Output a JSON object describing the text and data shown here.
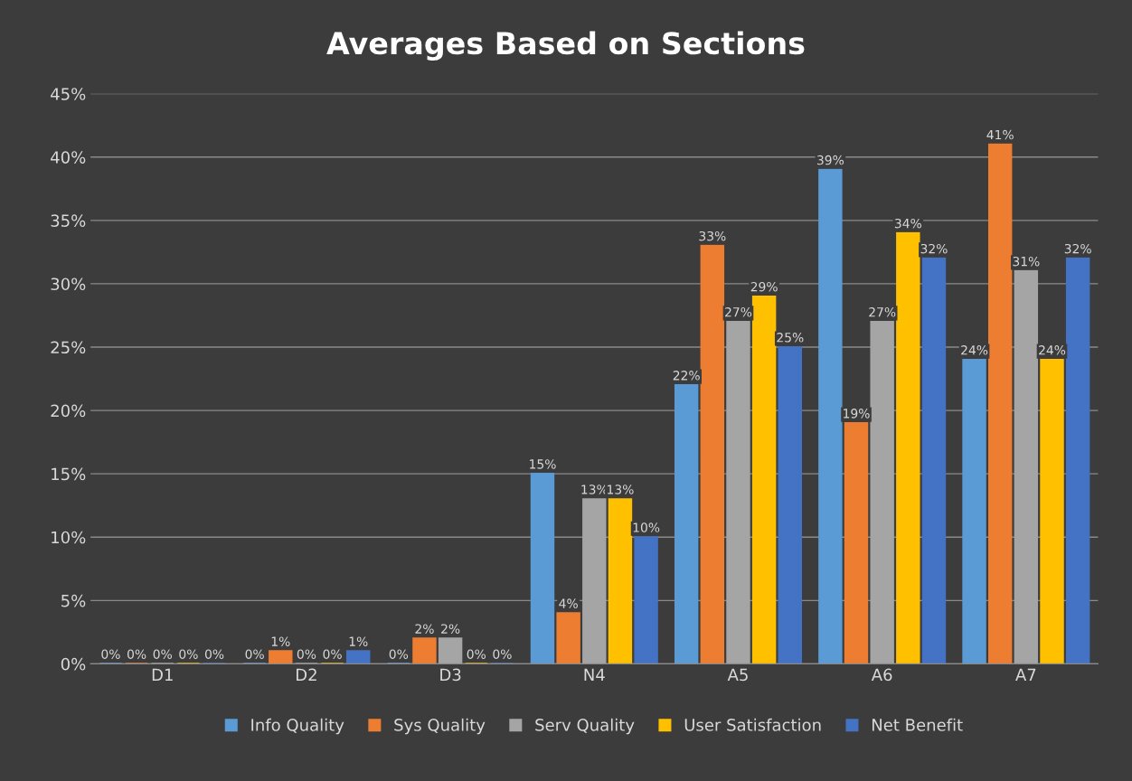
{
  "chart_data": {
    "type": "bar",
    "title": "Averages Based on Sections",
    "categories": [
      "D1",
      "D2",
      "D3",
      "N4",
      "A5",
      "A6",
      "A7"
    ],
    "series": [
      {
        "name": "Info Quality",
        "color": "#5b9bd5",
        "values": [
          0,
          0,
          0,
          15,
          22,
          39,
          24
        ],
        "value_labels": [
          "0%",
          "0%",
          "0%",
          "15%",
          "22%",
          "39%",
          "24%"
        ]
      },
      {
        "name": "Sys Quality",
        "color": "#ed7d31",
        "values": [
          0,
          1,
          2,
          4,
          33,
          19,
          41
        ],
        "value_labels": [
          "0%",
          "1%",
          "2%",
          "4%",
          "33%",
          "19%",
          "41%"
        ]
      },
      {
        "name": "Serv Quality",
        "color": "#a5a5a5",
        "values": [
          0,
          0,
          2,
          13,
          27,
          27,
          31
        ],
        "value_labels": [
          "0%",
          "0%",
          "2%",
          "13%",
          "27%",
          "27%",
          "31%"
        ]
      },
      {
        "name": "User Satisfaction",
        "color": "#ffc000",
        "values": [
          0,
          0,
          0,
          13,
          29,
          34,
          24
        ],
        "value_labels": [
          "0%",
          "0%",
          "0%",
          "13%",
          "29%",
          "34%",
          "24%"
        ]
      },
      {
        "name": "Net Benefit",
        "color": "#4472c4",
        "values": [
          0,
          1,
          0,
          10,
          25,
          32,
          32
        ],
        "value_labels": [
          "0%",
          "1%",
          "0%",
          "10%",
          "25%",
          "32%",
          "32%"
        ]
      }
    ],
    "ylim": [
      0,
      45
    ],
    "yticks": [
      {
        "value": 0,
        "label": "0%"
      },
      {
        "value": 5,
        "label": "5%"
      },
      {
        "value": 10,
        "label": "10%"
      },
      {
        "value": 15,
        "label": "15%"
      },
      {
        "value": 20,
        "label": "20%"
      },
      {
        "value": 25,
        "label": "25%"
      },
      {
        "value": 30,
        "label": "30%"
      },
      {
        "value": 35,
        "label": "35%"
      },
      {
        "value": 40,
        "label": "40%"
      },
      {
        "value": 45,
        "label": "45%"
      }
    ],
    "grid": "y",
    "legend": "bottom"
  }
}
